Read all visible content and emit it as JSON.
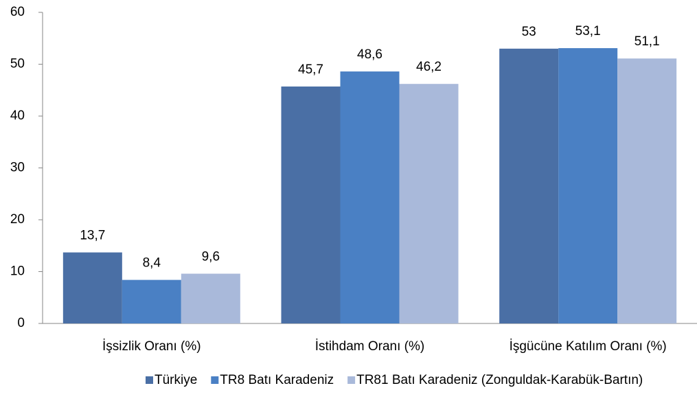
{
  "chart_data": {
    "type": "bar",
    "categories": [
      "İşsizlik Oranı (%)",
      "İstihdam Oranı (%)",
      "İşgücüne Katılım Oranı (%)"
    ],
    "series": [
      {
        "name": "Türkiye",
        "color": "#4a6fa5",
        "values": [
          13.7,
          45.7,
          53
        ],
        "value_labels": [
          "13,7",
          "45,7",
          "53"
        ]
      },
      {
        "name": "TR8 Batı Karadeniz",
        "color": "#4a80c4",
        "values": [
          8.4,
          48.6,
          53.1
        ],
        "value_labels": [
          "8,4",
          "48,6",
          "53,1"
        ]
      },
      {
        "name": "TR81 Batı Karadeniz (Zonguldak-Karabük-Bartın)",
        "color": "#a9b9da",
        "values": [
          9.6,
          46.2,
          51.1
        ],
        "value_labels": [
          "9,6",
          "46,2",
          "51,1"
        ]
      }
    ],
    "ylim": [
      0,
      60
    ],
    "yticks": [
      0,
      10,
      20,
      30,
      40,
      50,
      60
    ],
    "legend": "bottom"
  }
}
